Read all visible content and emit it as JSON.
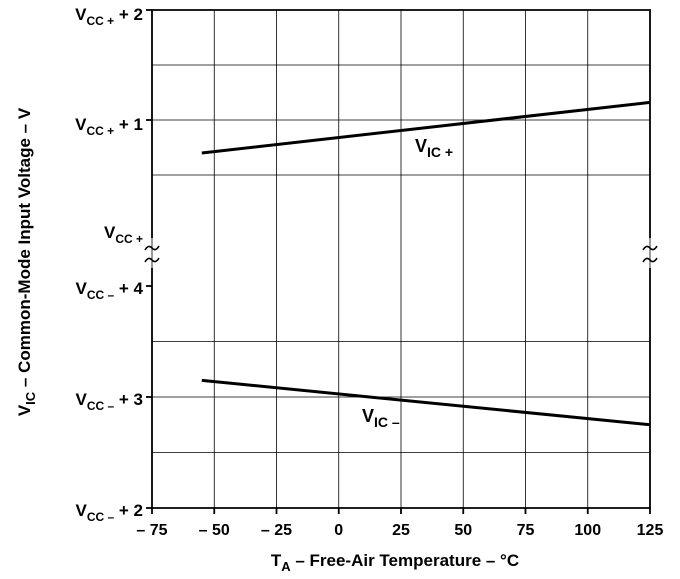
{
  "chart_data": {
    "type": "line",
    "xlabel": {
      "main": "T",
      "sub": "A",
      "rest": " – Free-Air Temperature – °C"
    },
    "ylabel": {
      "main": "V",
      "sub": "IC",
      "rest": " – Common-Mode Input Voltage – V"
    },
    "xlim": [
      -75,
      125
    ],
    "x_ticks": [
      "– 75",
      "– 50",
      "– 25",
      "0",
      "25",
      "50",
      "75",
      "100",
      "125"
    ],
    "grid": true,
    "upper_panel": {
      "reference": "VCC+",
      "ylim": [
        0,
        2
      ],
      "y_ticks": [
        {
          "value": 2,
          "main": "V",
          "sub": "CC +",
          "rest": " + 2"
        },
        {
          "value": 1,
          "main": "V",
          "sub": "CC +",
          "rest": " + 1"
        },
        {
          "value": 0,
          "main": "V",
          "sub": "CC +",
          "rest": ""
        }
      ]
    },
    "lower_panel": {
      "reference": "VCC−",
      "ylim": [
        2,
        4
      ],
      "y_ticks": [
        {
          "value": 4,
          "main": "V",
          "sub": "CC –",
          "rest": " + 4"
        },
        {
          "value": 3,
          "main": "V",
          "sub": "CC –",
          "rest": " + 3"
        },
        {
          "value": 2,
          "main": "V",
          "sub": "CC –",
          "rest": " + 2"
        }
      ]
    },
    "series": [
      {
        "name": "VIC+",
        "label": {
          "main": "V",
          "sub": "IC +"
        },
        "panel": "upper",
        "x": [
          -55,
          125
        ],
        "y": [
          0.7,
          1.16
        ]
      },
      {
        "name": "VIC−",
        "label": {
          "main": "V",
          "sub": "IC –"
        },
        "panel": "lower",
        "x": [
          -55,
          125
        ],
        "y": [
          3.15,
          2.75
        ]
      }
    ]
  }
}
